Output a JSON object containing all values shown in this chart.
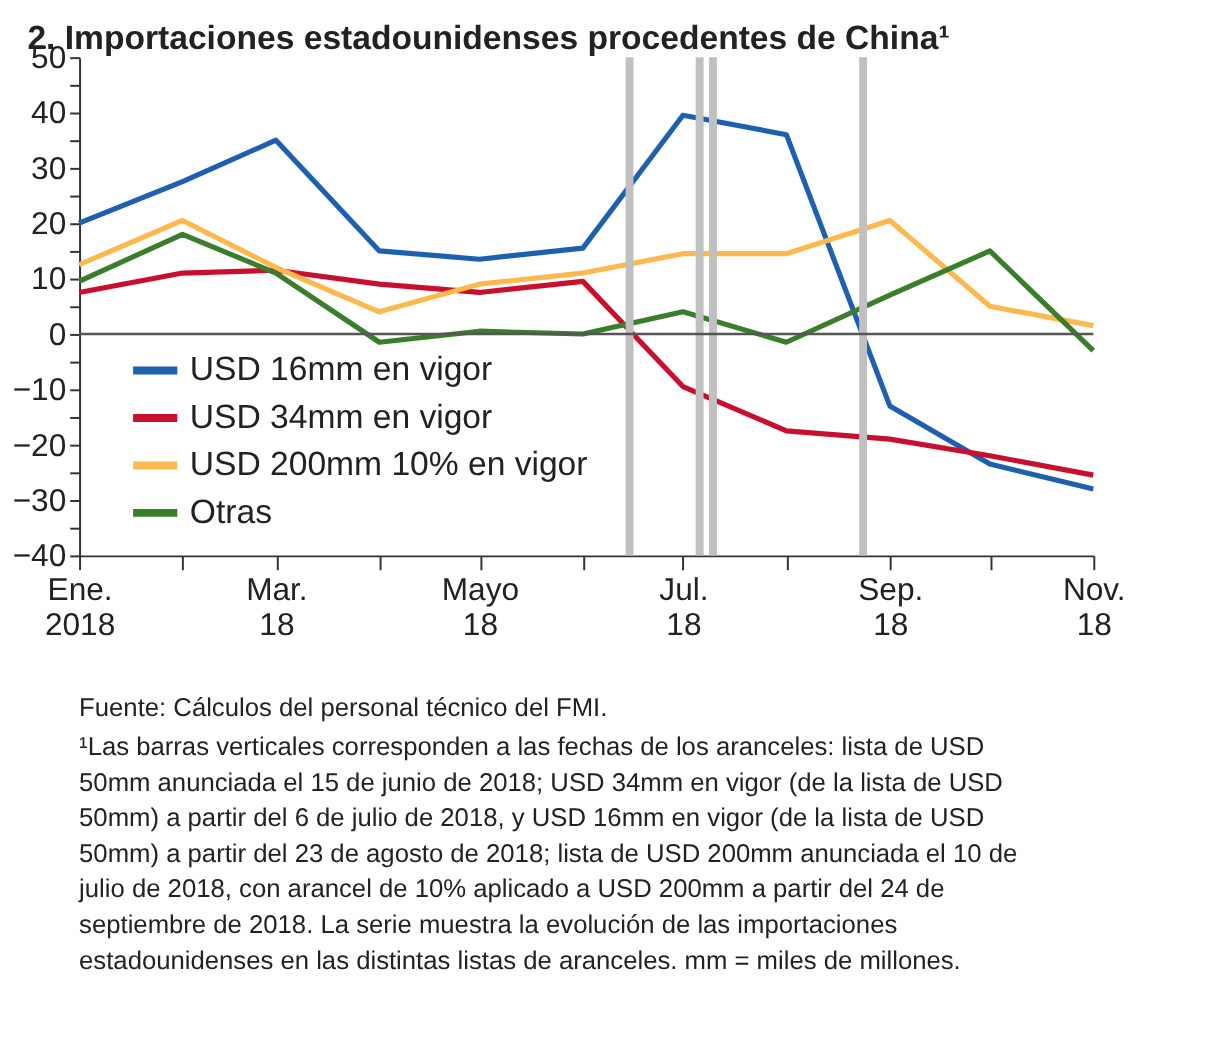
{
  "chart_data": {
    "type": "line",
    "title": "2. Importaciones estadounidenses procedentes de China¹",
    "x": [
      "2018-01",
      "2018-02",
      "2018-03",
      "2018-04",
      "2018-05",
      "2018-06",
      "2018-07",
      "2018-08",
      "2018-09",
      "2018-10",
      "2018-11"
    ],
    "series": [
      {
        "name": "USD 16mm en vigor",
        "color": "#1f5fb0",
        "values": [
          20,
          27.5,
          35,
          15,
          13.5,
          15.5,
          39.5,
          36,
          -13,
          -23.5,
          -28
        ]
      },
      {
        "name": "USD 34mm en vigor",
        "color": "#c8102e",
        "values": [
          7.5,
          11,
          11.5,
          9,
          7.5,
          9.5,
          -9.5,
          -17.5,
          -19,
          -22,
          -25.5
        ]
      },
      {
        "name": "USD 200mm 10% en vigor",
        "color": "#fdb94e",
        "values": [
          12.5,
          20.5,
          12,
          4,
          9,
          11,
          14.5,
          14.5,
          20.5,
          5,
          1.5
        ]
      },
      {
        "name": "Otras",
        "color": "#3a7d2c",
        "values": [
          9.5,
          18,
          11,
          -1.5,
          0.5,
          0,
          4,
          -1.5,
          7,
          15,
          -3
        ]
      }
    ],
    "xlim": [
      "2018-01",
      "2018-11"
    ],
    "xticks": [
      {
        "value": "2018-01",
        "label": "Ene.\n2018"
      },
      {
        "value": "2018-02",
        "label": null
      },
      {
        "value": "2018-03",
        "label": "Mar.\n18"
      },
      {
        "value": "2018-04",
        "label": null
      },
      {
        "value": "2018-05",
        "label": "Mayo\n18"
      },
      {
        "value": "2018-06",
        "label": null
      },
      {
        "value": "2018-07",
        "label": "Jul.\n18"
      },
      {
        "value": "2018-08",
        "label": null
      },
      {
        "value": "2018-09",
        "label": "Sep.\n18"
      },
      {
        "value": "2018-10",
        "label": null
      },
      {
        "value": "2018-11",
        "label": "Nov.\n18"
      }
    ],
    "ylim": [
      -40,
      50
    ],
    "yticks": [
      -40,
      {
        "value": -35,
        "label": null
      },
      -30,
      {
        "value": -25,
        "label": null
      },
      -20,
      {
        "value": -15,
        "label": null
      },
      -10,
      {
        "value": -5,
        "label": null
      },
      0,
      {
        "value": 5,
        "label": null
      },
      10,
      {
        "value": 15,
        "label": null
      },
      20,
      {
        "value": 25,
        "label": null
      },
      30,
      {
        "value": 35,
        "label": null
      },
      40,
      {
        "value": 45,
        "label": null
      },
      50
    ],
    "ref_lines": [
      {
        "axis": "x",
        "value": "2018-06-15",
        "label": null,
        "color": "#c0c0c0"
      },
      {
        "axis": "x",
        "value": "2018-07-06",
        "label": null,
        "color": "#c0c0c0"
      },
      {
        "axis": "x",
        "value": "2018-07-10",
        "label": null,
        "color": "#c0c0c0"
      },
      {
        "axis": "x",
        "value": "2018-08-24",
        "label": null,
        "color": "#c0c0c0"
      },
      {
        "axis": "y",
        "value": 0,
        "label": null,
        "color": "#555555"
      }
    ],
    "grid": false,
    "legend": "bottom left",
    "marker": "none",
    "line_style": "solid",
    "annotations": [
      "Fuente: Cálculos del personal técnico del FMI.",
      "¹Las barras verticales corresponden a las fechas de los aranceles: lista de USD 50mm anunciada el 15 de junio de 2018; USD 34mm en vigor (de la lista de USD 50mm) a partir del 6 de julio de 2018, y USD 16mm en vigor (de la lista de USD 50mm) a partir del 23 de agosto de 2018; lista de USD 200mm anunciada el 10 de julio de 2018, con arancel de 10% aplicado a USD 200mm a partir del 24 de septiembre de 2018. La serie muestra la evolución de las importaciones estadounidenses en las distintas listas de aranceles. mm = miles de millones."
    ]
  }
}
